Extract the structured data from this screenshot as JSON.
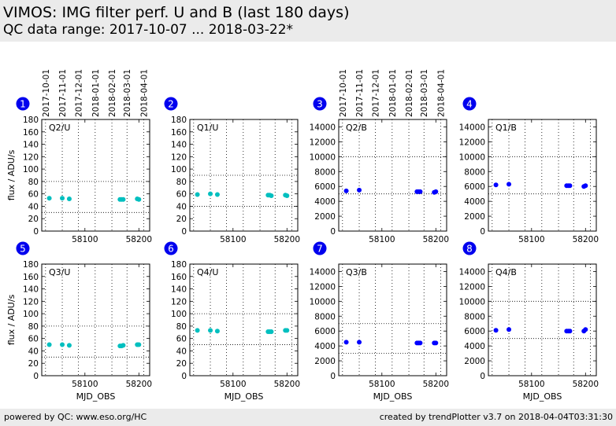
{
  "header": {
    "title": "VIMOS: IMG filter perf. U and B (last 180 days)",
    "subtitle": "QC data range: 2017-10-07 ... 2018-03-22*"
  },
  "footer": {
    "left": "powered by QC: www.eso.org/HC",
    "right": "created by trendPlotter v3.7 on 2018-04-04T03:31:30"
  },
  "date_ticks": [
    "2017-10-01",
    "2017-11-01",
    "2017-12-01",
    "2018-01-01",
    "2018-02-01",
    "2018-03-01",
    "2018-04-01"
  ],
  "date_tick_mjd": [
    58027,
    58058,
    58088,
    58119,
    58150,
    58178,
    58209
  ],
  "ylabel": "flux / ADU/s",
  "xlabel": "MJD_OBS",
  "colors": {
    "U": "#00bfbf",
    "B": "#0000ff",
    "badge": "#0000ee"
  },
  "chart_data": [
    {
      "type": "scatter",
      "panel": "1",
      "label": "Q2/U",
      "color": "#00bfbf",
      "xlim": [
        58020,
        58220
      ],
      "ylim": [
        0,
        180
      ],
      "yticks": [
        0,
        20,
        40,
        60,
        80,
        100,
        120,
        140,
        160,
        180
      ],
      "xticks": [
        58100,
        58200
      ],
      "ref_lines": [
        80,
        30
      ],
      "x": [
        58034,
        58058,
        58071,
        58165,
        58168,
        58171,
        58197,
        58200
      ],
      "y": [
        53,
        53,
        52,
        51,
        51,
        51,
        52,
        51
      ]
    },
    {
      "type": "scatter",
      "panel": "2",
      "label": "Q1/U",
      "color": "#00bfbf",
      "xlim": [
        58020,
        58220
      ],
      "ylim": [
        0,
        180
      ],
      "yticks": [
        0,
        20,
        40,
        60,
        80,
        100,
        120,
        140,
        160,
        180
      ],
      "xticks": [
        58100,
        58200
      ],
      "ref_lines": [
        90,
        40
      ],
      "x": [
        58034,
        58058,
        58071,
        58165,
        58168,
        58171,
        58197,
        58200
      ],
      "y": [
        59,
        60,
        59,
        58,
        58,
        57,
        58,
        57
      ]
    },
    {
      "type": "scatter",
      "panel": "3",
      "label": "Q2/B",
      "color": "#0000ff",
      "xlim": [
        58020,
        58220
      ],
      "ylim": [
        0,
        15000
      ],
      "yticks": [
        0,
        2000,
        4000,
        6000,
        8000,
        10000,
        12000,
        14000
      ],
      "xticks": [
        58100,
        58200
      ],
      "ref_lines": [
        10000,
        5000
      ],
      "x": [
        58034,
        58058,
        58165,
        58168,
        58171,
        58197,
        58200
      ],
      "y": [
        5400,
        5500,
        5300,
        5300,
        5300,
        5200,
        5300
      ]
    },
    {
      "type": "scatter",
      "panel": "4",
      "label": "Q1/B",
      "color": "#0000ff",
      "xlim": [
        58020,
        58220
      ],
      "ylim": [
        0,
        15000
      ],
      "yticks": [
        0,
        2000,
        4000,
        6000,
        8000,
        10000,
        12000,
        14000
      ],
      "xticks": [
        58100,
        58200
      ],
      "ref_lines": [
        10000,
        5000
      ],
      "x": [
        58034,
        58058,
        58165,
        58168,
        58171,
        58197,
        58200
      ],
      "y": [
        6200,
        6300,
        6100,
        6100,
        6100,
        6000,
        6100
      ]
    },
    {
      "type": "scatter",
      "panel": "5",
      "label": "Q3/U",
      "color": "#00bfbf",
      "xlim": [
        58020,
        58220
      ],
      "ylim": [
        0,
        180
      ],
      "yticks": [
        0,
        20,
        40,
        60,
        80,
        100,
        120,
        140,
        160,
        180
      ],
      "xticks": [
        58100,
        58200
      ],
      "ref_lines": [
        80,
        30
      ],
      "x": [
        58034,
        58058,
        58071,
        58165,
        58168,
        58171,
        58197,
        58200
      ],
      "y": [
        50,
        50,
        49,
        48,
        48,
        49,
        50,
        50
      ]
    },
    {
      "type": "scatter",
      "panel": "6",
      "label": "Q4/U",
      "color": "#00bfbf",
      "xlim": [
        58020,
        58220
      ],
      "ylim": [
        0,
        180
      ],
      "yticks": [
        0,
        20,
        40,
        60,
        80,
        100,
        120,
        140,
        160,
        180
      ],
      "xticks": [
        58100,
        58200
      ],
      "ref_lines": [
        100,
        50
      ],
      "x": [
        58034,
        58058,
        58071,
        58165,
        58168,
        58171,
        58197,
        58200
      ],
      "y": [
        73,
        73,
        72,
        71,
        71,
        71,
        73,
        73
      ]
    },
    {
      "type": "scatter",
      "panel": "7",
      "label": "Q3/B",
      "color": "#0000ff",
      "xlim": [
        58020,
        58220
      ],
      "ylim": [
        0,
        15000
      ],
      "yticks": [
        0,
        2000,
        4000,
        6000,
        8000,
        10000,
        12000,
        14000
      ],
      "xticks": [
        58100,
        58200
      ],
      "ref_lines": [
        7000,
        3000
      ],
      "x": [
        58034,
        58058,
        58165,
        58168,
        58171,
        58197,
        58200
      ],
      "y": [
        4500,
        4500,
        4400,
        4400,
        4400,
        4400,
        4400
      ]
    },
    {
      "type": "scatter",
      "panel": "8",
      "label": "Q4/B",
      "color": "#0000ff",
      "xlim": [
        58020,
        58220
      ],
      "ylim": [
        0,
        15000
      ],
      "yticks": [
        0,
        2000,
        4000,
        6000,
        8000,
        10000,
        12000,
        14000
      ],
      "xticks": [
        58100,
        58200
      ],
      "ref_lines": [
        10000,
        5000
      ],
      "x": [
        58034,
        58058,
        58165,
        58168,
        58171,
        58197,
        58200
      ],
      "y": [
        6100,
        6200,
        6000,
        6000,
        6000,
        6000,
        6200
      ]
    }
  ]
}
